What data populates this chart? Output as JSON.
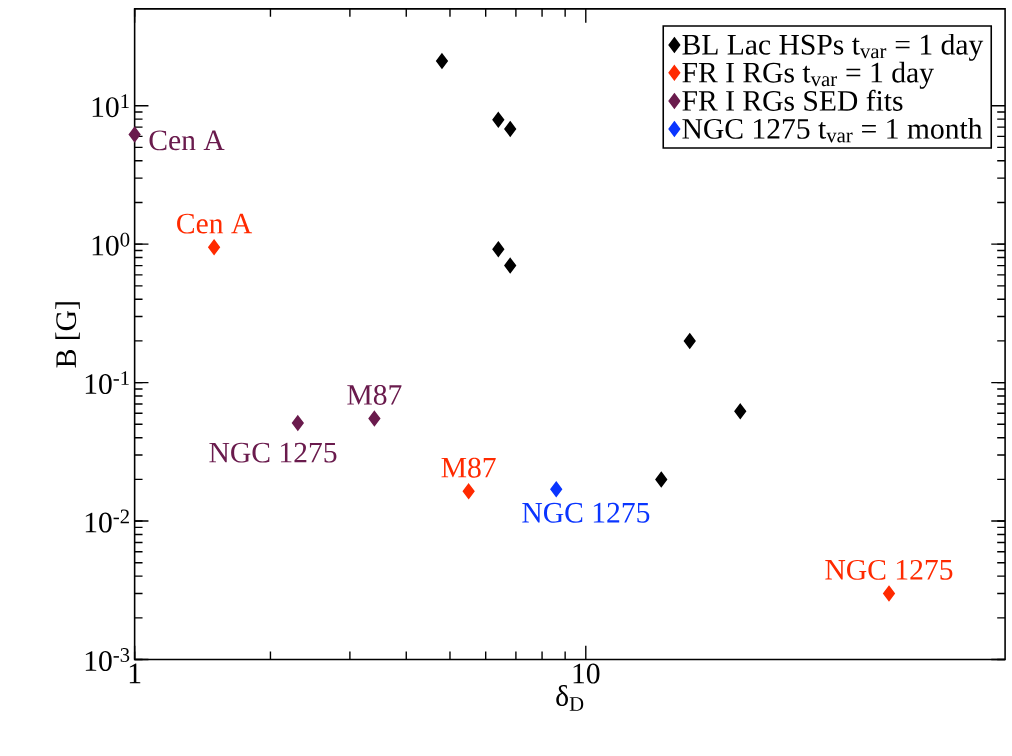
{
  "chart_data": {
    "type": "scatter",
    "xlabel": "δ$_{D}$",
    "ylabel": "B [G]",
    "log": "xy",
    "marker": "diamond",
    "legend": "top right",
    "xlim": [
      1,
      85
    ],
    "ylim": [
      0.001,
      50
    ],
    "xticks": [
      1,
      10
    ],
    "yticks": [
      {
        "value": 0.001,
        "label": "10$^{-3}$"
      },
      {
        "value": 0.01,
        "label": "10$^{-2}$"
      },
      {
        "value": 0.1,
        "label": "10$^{-1}$"
      },
      {
        "value": 1,
        "label": "10$^{0}$"
      },
      {
        "value": 10,
        "label": "10$^{1}$"
      }
    ],
    "series": [
      {
        "name": "BL Lac HSPs t$_{var}$ = 1 day",
        "color": "#000000",
        "x": [
          4.8,
          6.4,
          6.8,
          6.4,
          6.8,
          17,
          22,
          14.7
        ],
        "values": [
          21,
          7.9,
          6.8,
          0.92,
          0.7,
          0.2,
          0.062,
          0.02
        ]
      },
      {
        "name": "FR I RGs t$_{var}$ = 1 day",
        "color": "#ff2a00",
        "x": [
          1.5,
          5.5,
          47
        ],
        "values": [
          0.95,
          0.0164,
          0.003
        ]
      },
      {
        "name": "FR I RGs SED fits",
        "color": "#6a1b4d",
        "x": [
          1,
          2.3,
          3.4
        ],
        "values": [
          6.2,
          0.051,
          0.055
        ]
      },
      {
        "name": "NGC 1275 t$_{var}$ = 1 month",
        "color": "#0a35ff",
        "x": [
          8.6
        ],
        "values": [
          0.017
        ]
      }
    ],
    "annotations": [
      {
        "text": "Cen A",
        "x": 1,
        "y": 6.2
      },
      {
        "text": "Cen A",
        "x": 1.5,
        "y": 0.95
      },
      {
        "text": "M87",
        "x": 3.4,
        "y": 0.055
      },
      {
        "text": "NGC 1275",
        "x": 2.3,
        "y": 0.051
      },
      {
        "text": "M87",
        "x": 5.5,
        "y": 0.0164
      },
      {
        "text": "NGC 1275",
        "x": 8.6,
        "y": 0.017
      },
      {
        "text": "NGC 1275",
        "x": 47,
        "y": 0.003
      }
    ]
  }
}
